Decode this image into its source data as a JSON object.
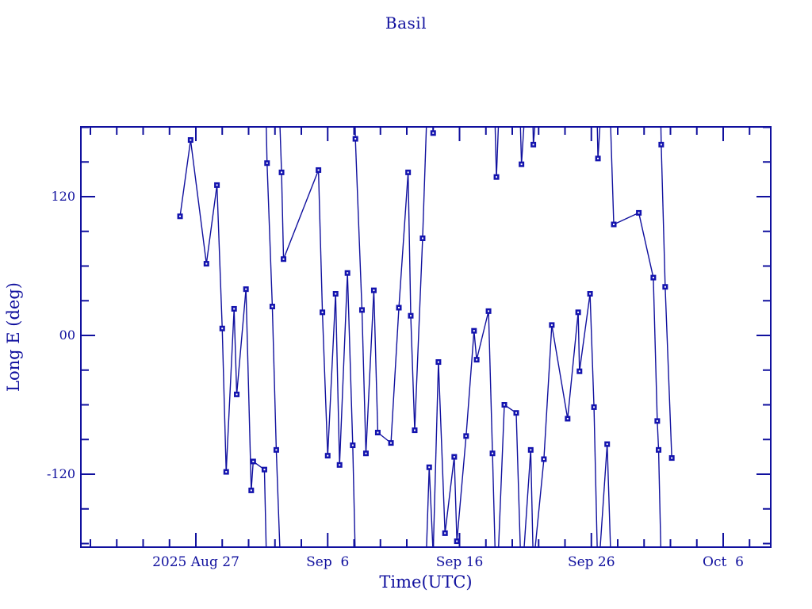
{
  "title": "Basil",
  "colors": {
    "background": "#ffffff",
    "axis": "#10109E",
    "text": "#10109E",
    "line": "#10109E",
    "marker_fill": "#1313AE",
    "marker_center": "#ffffff"
  },
  "chart_data": {
    "type": "line",
    "title": "Basil",
    "xlabel": "Time(UTC)",
    "ylabel": "Long E (deg)",
    "x_unit_days_after": "2025 Aug 27 00:00 UTC",
    "xlim": [
      -8.72,
      43.6
    ],
    "ylim": [
      -183.1,
      180.4
    ],
    "wrap_at_deg": 180,
    "grid": false,
    "legend": null,
    "marker": "filled-square",
    "x_major_ticks": [
      {
        "t": 0,
        "label": "2025 Aug 27"
      },
      {
        "t": 10,
        "label": "Sep  6"
      },
      {
        "t": 20,
        "label": "Sep 16"
      },
      {
        "t": 30,
        "label": "Sep 26"
      },
      {
        "t": 40,
        "label": "Oct  6"
      }
    ],
    "x_minor_tick_step_days": 2,
    "y_major_ticks": [
      {
        "v": 120,
        "label": "120"
      },
      {
        "v": 0,
        "label": "00"
      },
      {
        "v": -120,
        "label": "-120"
      }
    ],
    "y_minor_tick_step_deg": 30,
    "points": [
      {
        "t": -1.2,
        "lon": 103
      },
      {
        "t": -0.4,
        "lon": 169
      },
      {
        "t": 0.8,
        "lon": 62
      },
      {
        "t": 1.6,
        "lon": 130
      },
      {
        "t": 2.0,
        "lon": 6
      },
      {
        "t": 2.3,
        "lon": -118
      },
      {
        "t": 2.9,
        "lon": 23
      },
      {
        "t": 3.1,
        "lon": -51
      },
      {
        "t": 3.8,
        "lon": 40
      },
      {
        "t": 4.2,
        "lon": -134
      },
      {
        "t": 4.35,
        "lon": -109
      },
      {
        "t": 5.2,
        "lon": -116
      },
      {
        "t": 5.4,
        "lon": 149
      },
      {
        "t": 5.8,
        "lon": 25
      },
      {
        "t": 6.1,
        "lon": -99
      },
      {
        "t": 6.5,
        "lon": 141
      },
      {
        "t": 6.65,
        "lon": 66
      },
      {
        "t": 9.3,
        "lon": 143
      },
      {
        "t": 9.6,
        "lon": 20
      },
      {
        "t": 10.0,
        "lon": -104
      },
      {
        "t": 10.6,
        "lon": 36
      },
      {
        "t": 10.9,
        "lon": -112
      },
      {
        "t": 11.5,
        "lon": 54
      },
      {
        "t": 11.9,
        "lon": -95
      },
      {
        "t": 12.1,
        "lon": 170
      },
      {
        "t": 12.6,
        "lon": 22
      },
      {
        "t": 12.9,
        "lon": -102
      },
      {
        "t": 13.5,
        "lon": 39
      },
      {
        "t": 13.8,
        "lon": -84
      },
      {
        "t": 14.8,
        "lon": -93
      },
      {
        "t": 15.4,
        "lon": 24
      },
      {
        "t": 16.1,
        "lon": 141
      },
      {
        "t": 16.3,
        "lon": 17
      },
      {
        "t": 16.6,
        "lon": -82
      },
      {
        "t": 17.2,
        "lon": 84
      },
      {
        "t": 17.7,
        "lon": -114
      },
      {
        "t": 18.0,
        "lon": 175
      },
      {
        "t": 18.4,
        "lon": -23
      },
      {
        "t": 18.9,
        "lon": -171
      },
      {
        "t": 19.6,
        "lon": -105
      },
      {
        "t": 19.8,
        "lon": -178
      },
      {
        "t": 20.5,
        "lon": -87
      },
      {
        "t": 21.1,
        "lon": 4
      },
      {
        "t": 21.3,
        "lon": -21
      },
      {
        "t": 22.2,
        "lon": 21
      },
      {
        "t": 22.5,
        "lon": -102
      },
      {
        "t": 22.8,
        "lon": 137
      },
      {
        "t": 23.4,
        "lon": -60
      },
      {
        "t": 24.3,
        "lon": -67
      },
      {
        "t": 24.7,
        "lon": 148
      },
      {
        "t": 25.4,
        "lon": -99
      },
      {
        "t": 25.6,
        "lon": 165
      },
      {
        "t": 26.4,
        "lon": -107
      },
      {
        "t": 27.0,
        "lon": 9
      },
      {
        "t": 28.2,
        "lon": -72
      },
      {
        "t": 29.0,
        "lon": 20
      },
      {
        "t": 29.1,
        "lon": -31
      },
      {
        "t": 29.9,
        "lon": 36
      },
      {
        "t": 30.2,
        "lon": -62
      },
      {
        "t": 30.5,
        "lon": 153
      },
      {
        "t": 31.2,
        "lon": -94
      },
      {
        "t": 31.7,
        "lon": 96
      },
      {
        "t": 33.6,
        "lon": 106
      },
      {
        "t": 34.7,
        "lon": 50
      },
      {
        "t": 35.0,
        "lon": -74
      },
      {
        "t": 35.1,
        "lon": -99
      },
      {
        "t": 35.3,
        "lon": 165
      },
      {
        "t": 35.6,
        "lon": 42
      },
      {
        "t": 36.1,
        "lon": -106
      }
    ]
  }
}
